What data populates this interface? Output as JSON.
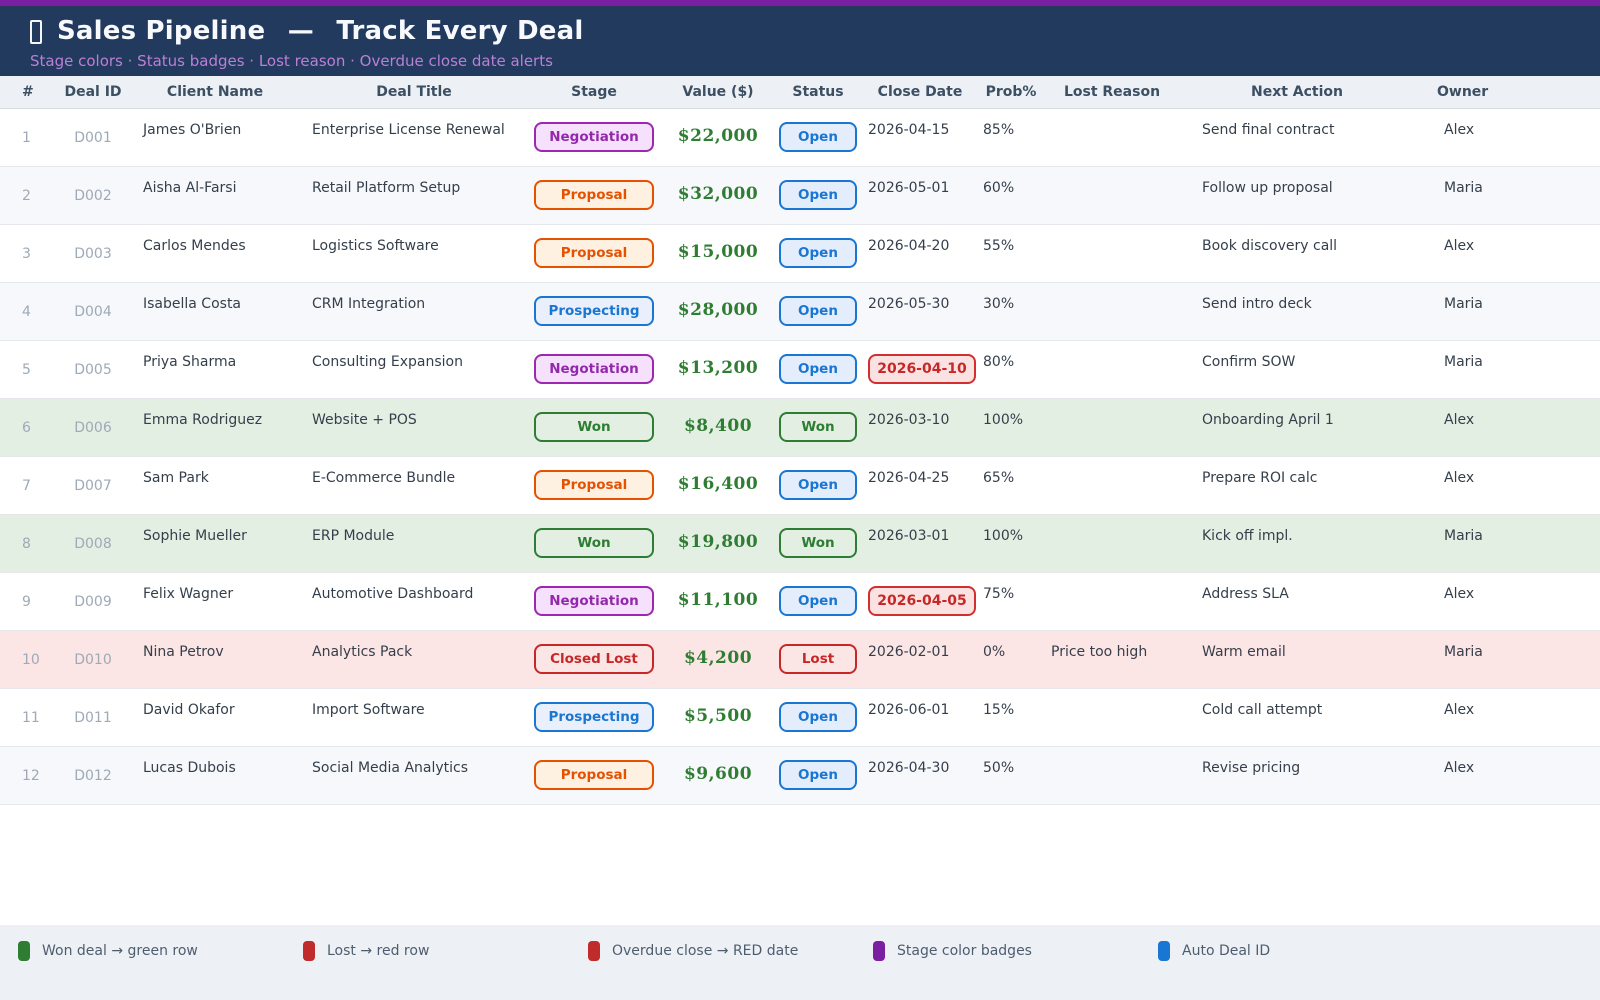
{
  "header": {
    "title": "Sales Pipeline  —  Track Every Deal",
    "subtitle": "Stage colors · Status badges · Lost reason · Overdue close date alerts",
    "window_icon": "window-icon"
  },
  "table": {
    "columns": [
      "#",
      "Deal ID",
      "Client Name",
      "Deal Title",
      "Stage",
      "Value ($)",
      "Status",
      "Close Date",
      "Prob%",
      "Lost Reason",
      "Next Action",
      "Owner"
    ],
    "rows": [
      {
        "num": "1",
        "deal_id": "D001",
        "client": "James O'Brien",
        "title": "Enterprise License Renewal",
        "stage": "Negotiation",
        "value": "$22,000",
        "status": "Open",
        "close_date": "2026-04-15",
        "overdue": false,
        "prob": "85%",
        "lost_reason": "",
        "next_action": "Send final contract",
        "owner": "Alex",
        "row_type": "normal"
      },
      {
        "num": "2",
        "deal_id": "D002",
        "client": "Aisha Al-Farsi",
        "title": "Retail Platform Setup",
        "stage": "Proposal",
        "value": "$32,000",
        "status": "Open",
        "close_date": "2026-05-01",
        "overdue": false,
        "prob": "60%",
        "lost_reason": "",
        "next_action": "Follow up proposal",
        "owner": "Maria",
        "row_type": "normal"
      },
      {
        "num": "3",
        "deal_id": "D003",
        "client": "Carlos Mendes",
        "title": "Logistics Software",
        "stage": "Proposal",
        "value": "$15,000",
        "status": "Open",
        "close_date": "2026-04-20",
        "overdue": false,
        "prob": "55%",
        "lost_reason": "",
        "next_action": "Book discovery call",
        "owner": "Alex",
        "row_type": "normal"
      },
      {
        "num": "4",
        "deal_id": "D004",
        "client": "Isabella Costa",
        "title": "CRM Integration",
        "stage": "Prospecting",
        "value": "$28,000",
        "status": "Open",
        "close_date": "2026-05-30",
        "overdue": false,
        "prob": "30%",
        "lost_reason": "",
        "next_action": "Send intro deck",
        "owner": "Maria",
        "row_type": "normal"
      },
      {
        "num": "5",
        "deal_id": "D005",
        "client": "Priya Sharma",
        "title": "Consulting Expansion",
        "stage": "Negotiation",
        "value": "$13,200",
        "status": "Open",
        "close_date": "2026-04-10",
        "overdue": true,
        "prob": "80%",
        "lost_reason": "",
        "next_action": "Confirm SOW",
        "owner": "Maria",
        "row_type": "normal"
      },
      {
        "num": "6",
        "deal_id": "D006",
        "client": "Emma Rodriguez",
        "title": "Website + POS",
        "stage": "Won",
        "value": "$8,400",
        "status": "Won",
        "close_date": "2026-03-10",
        "overdue": false,
        "prob": "100%",
        "lost_reason": "",
        "next_action": "Onboarding April 1",
        "owner": "Alex",
        "row_type": "won"
      },
      {
        "num": "7",
        "deal_id": "D007",
        "client": "Sam Park",
        "title": "E-Commerce Bundle",
        "stage": "Proposal",
        "value": "$16,400",
        "status": "Open",
        "close_date": "2026-04-25",
        "overdue": false,
        "prob": "65%",
        "lost_reason": "",
        "next_action": "Prepare ROI calc",
        "owner": "Alex",
        "row_type": "normal"
      },
      {
        "num": "8",
        "deal_id": "D008",
        "client": "Sophie Mueller",
        "title": "ERP Module",
        "stage": "Won",
        "value": "$19,800",
        "status": "Won",
        "close_date": "2026-03-01",
        "overdue": false,
        "prob": "100%",
        "lost_reason": "",
        "next_action": "Kick off impl.",
        "owner": "Maria",
        "row_type": "won"
      },
      {
        "num": "9",
        "deal_id": "D009",
        "client": "Felix Wagner",
        "title": "Automotive Dashboard",
        "stage": "Negotiation",
        "value": "$11,100",
        "status": "Open",
        "close_date": "2026-04-05",
        "overdue": true,
        "prob": "75%",
        "lost_reason": "",
        "next_action": "Address SLA",
        "owner": "Alex",
        "row_type": "normal"
      },
      {
        "num": "10",
        "deal_id": "D010",
        "client": "Nina Petrov",
        "title": "Analytics Pack",
        "stage": "Closed Lost",
        "value": "$4,200",
        "status": "Lost",
        "close_date": "2026-02-01",
        "overdue": false,
        "prob": "0%",
        "lost_reason": "Price too high",
        "next_action": "Warm email",
        "owner": "Maria",
        "row_type": "lost"
      },
      {
        "num": "11",
        "deal_id": "D011",
        "client": "David Okafor",
        "title": "Import Software",
        "stage": "Prospecting",
        "value": "$5,500",
        "status": "Open",
        "close_date": "2026-06-01",
        "overdue": false,
        "prob": "15%",
        "lost_reason": "",
        "next_action": "Cold call attempt",
        "owner": "Alex",
        "row_type": "normal"
      },
      {
        "num": "12",
        "deal_id": "D012",
        "client": "Lucas Dubois",
        "title": "Social Media Analytics",
        "stage": "Proposal",
        "value": "$9,600",
        "status": "Open",
        "close_date": "2026-04-30",
        "overdue": false,
        "prob": "50%",
        "lost_reason": "",
        "next_action": "Revise pricing",
        "owner": "Alex",
        "row_type": "normal"
      }
    ]
  },
  "badge_colors": {
    "stage": {
      "Negotiation": {
        "bg": "#f5e1fb",
        "border": "#9c27b0",
        "text": "#9428ad"
      },
      "Proposal": {
        "bg": "#fef1e2",
        "border": "#e65100",
        "text": "#e65100"
      },
      "Prospecting": {
        "bg": "#e9f0fc",
        "border": "#1976d2",
        "text": "#1976d2"
      },
      "Won": {
        "bg": "transparent",
        "border": "#2e7d32",
        "text": "#2e7d32"
      },
      "Closed Lost": {
        "bg": "transparent",
        "border": "#c62828",
        "text": "#c62828"
      }
    },
    "status": {
      "Open": {
        "bg": "#e4edfc",
        "border": "#1976d2",
        "text": "#1976d2"
      },
      "Won": {
        "bg": "transparent",
        "border": "#2e7d32",
        "text": "#2e7d32"
      },
      "Lost": {
        "bg": "transparent",
        "border": "#c62828",
        "text": "#c62828"
      }
    },
    "overdue_date": {
      "bg": "#fbe2e2",
      "border": "#d32f2f",
      "text": "#c62828"
    }
  },
  "colors": {
    "top_strip": "#7b1fa2",
    "header_bg": "#223a5e",
    "subtitle_text": "#bb7fd6",
    "table_header_bg": "#edf0f4",
    "alt_row_bg": "#f7f8fb",
    "won_row_bg": "#e4efe4",
    "lost_row_bg": "#fce5e5",
    "value_text": "#2e7d32",
    "muted_id_text": "#9fa9b7",
    "footer_bg": "#edf1f6"
  },
  "legend": [
    {
      "label": "Won deal → green row",
      "color": "#2e7d32"
    },
    {
      "label": "Lost → red row",
      "color": "#c02b2b"
    },
    {
      "label": "Overdue close → RED date",
      "color": "#c02b2b"
    },
    {
      "label": "Stage color badges",
      "color": "#7b1fa2"
    },
    {
      "label": "Auto Deal ID",
      "color": "#1976d2"
    }
  ]
}
